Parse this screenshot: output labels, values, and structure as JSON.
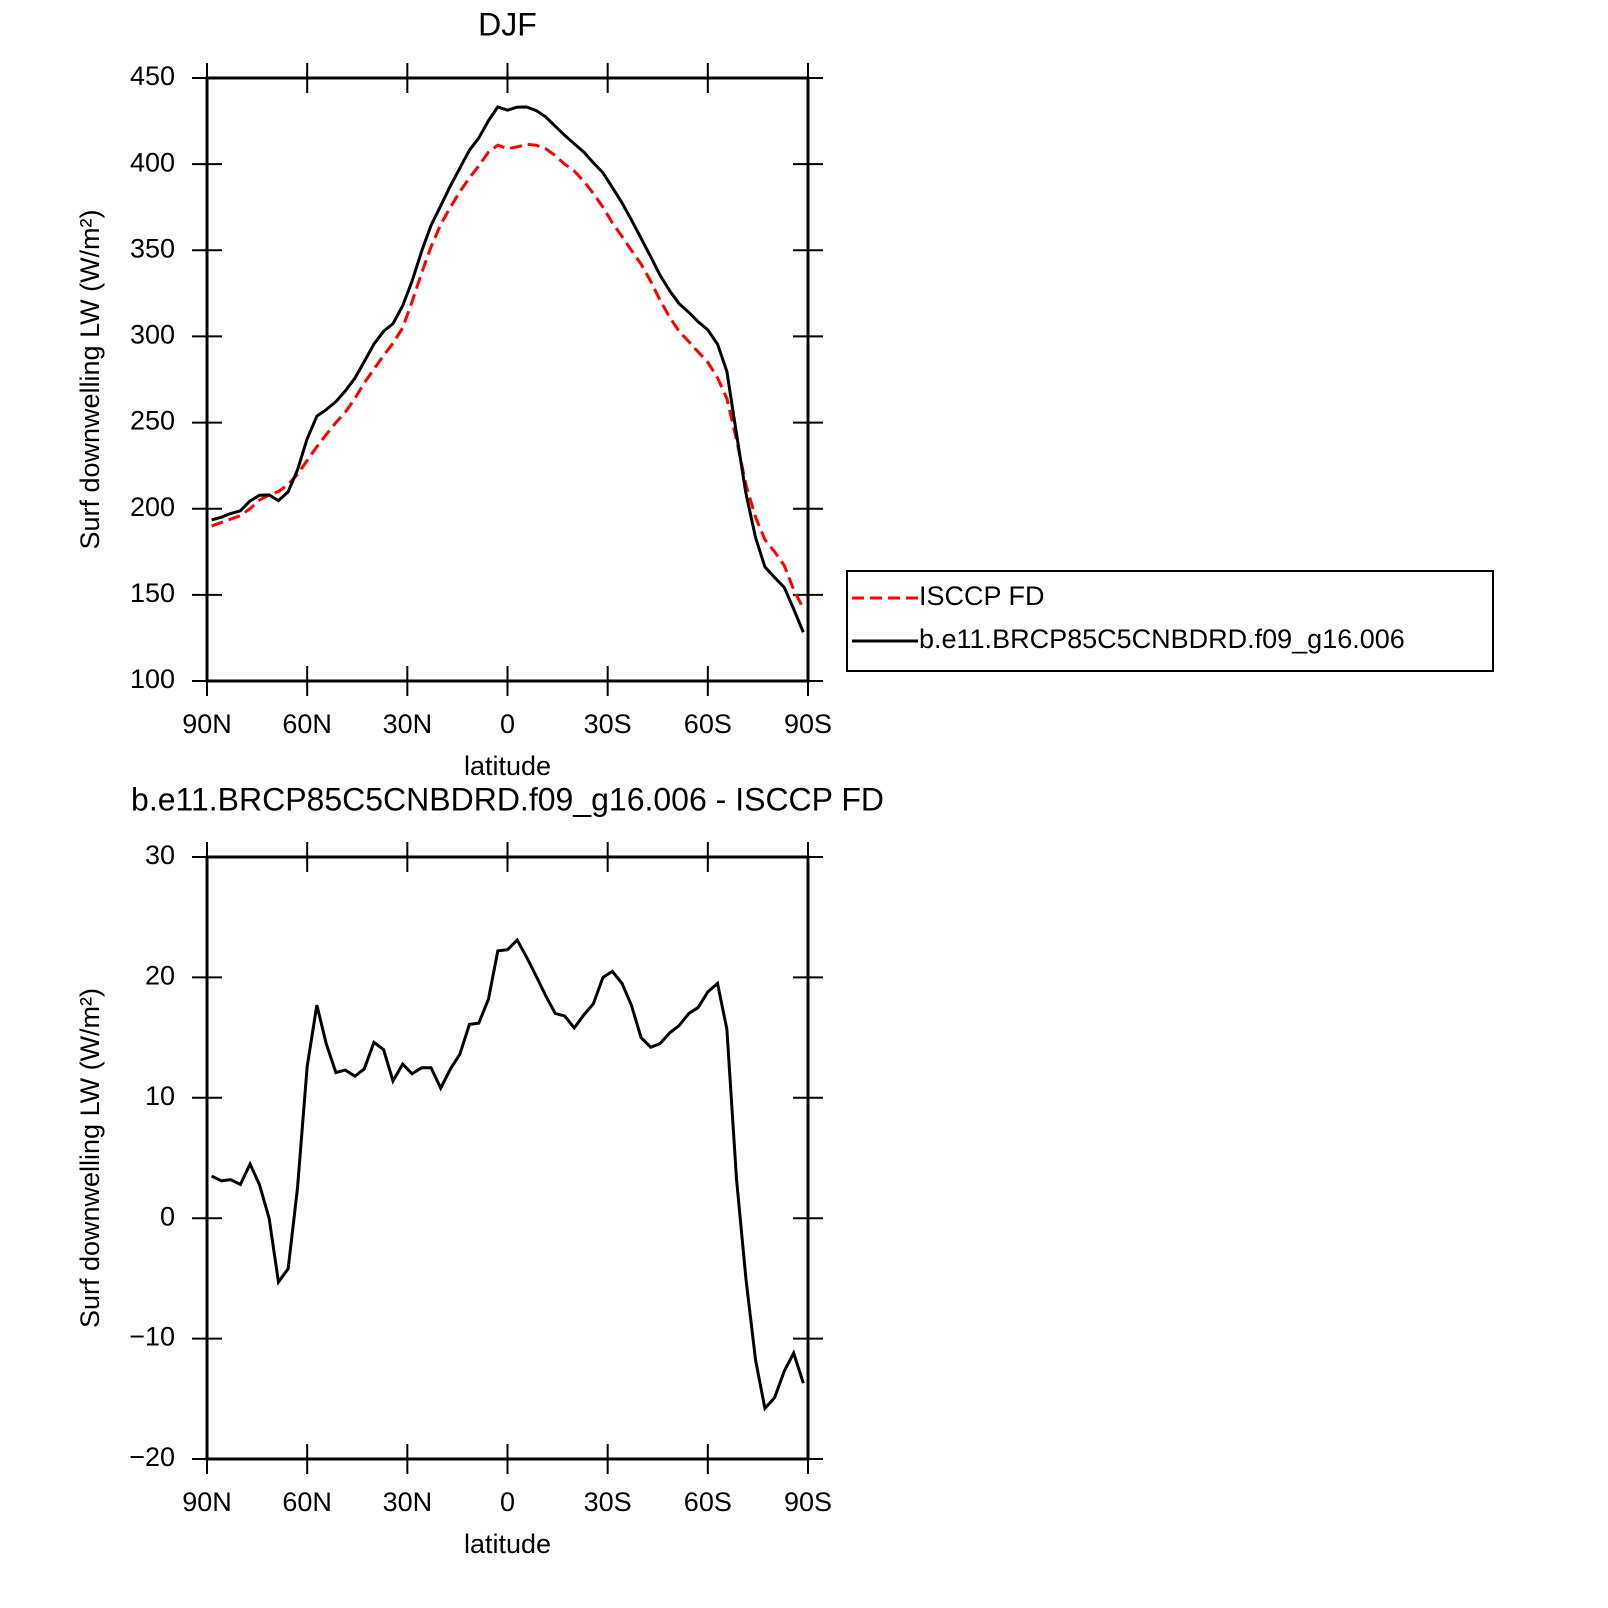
{
  "chart_data": [
    {
      "type": "line",
      "title": "DJF",
      "xlabel": "latitude",
      "ylabel": "Surf downwelling LW (W/m²)",
      "x": [
        88.6,
        85.7,
        82.9,
        80.0,
        77.1,
        74.3,
        71.4,
        68.6,
        65.7,
        62.9,
        60.0,
        57.1,
        54.3,
        51.4,
        48.6,
        45.7,
        42.9,
        40.0,
        37.1,
        34.3,
        31.4,
        28.6,
        25.7,
        22.9,
        20.0,
        17.1,
        14.3,
        11.4,
        8.6,
        5.7,
        2.9,
        0,
        -2.9,
        -5.7,
        -8.6,
        -11.4,
        -14.3,
        -17.1,
        -20.0,
        -22.9,
        -25.7,
        -28.6,
        -31.4,
        -34.3,
        -37.1,
        -40.0,
        -42.9,
        -45.7,
        -48.6,
        -51.4,
        -54.3,
        -57.1,
        -60.0,
        -62.9,
        -65.7,
        -68.6,
        -71.4,
        -74.3,
        -77.1,
        -80.0,
        -82.9,
        -85.7,
        -88.6
      ],
      "series": [
        {
          "name": "ISCCP FD",
          "color": "#ff0000",
          "dashed": true,
          "values": [
            190,
            192,
            194,
            196,
            200,
            205,
            208,
            210,
            214,
            220,
            228,
            236,
            243,
            250,
            256,
            264,
            273,
            281,
            289,
            296,
            305,
            320,
            337,
            352,
            365,
            375,
            384,
            392,
            399,
            407,
            411,
            409,
            410,
            411.5,
            411,
            409,
            405,
            400,
            396,
            390,
            383,
            375,
            366,
            358,
            350,
            342,
            332,
            321,
            311,
            303,
            297,
            291,
            285,
            276,
            264,
            240,
            214,
            195,
            182,
            175,
            167,
            153,
            142
          ]
        },
        {
          "name": "b.e11.BRCP85C5CNBDRD.f09_g16.006",
          "color": "#000000",
          "dashed": false,
          "values": [
            193.5,
            195.1,
            197.2,
            198.8,
            204.5,
            207.8,
            208,
            204.7,
            209.8,
            222.5,
            240.6,
            253.7,
            257.5,
            262.1,
            268.3,
            275.8,
            285.4,
            295.6,
            303,
            307.4,
            317.8,
            332,
            349.5,
            364.5,
            375.8,
            387.4,
            397.6,
            408.1,
            415.2,
            425.2,
            433.2,
            431.3,
            433.1,
            433.2,
            431.1,
            427.5,
            422,
            416.8,
            411.8,
            406.9,
            400.8,
            395,
            386.5,
            377.5,
            367.7,
            357,
            346.2,
            335.5,
            326.4,
            319,
            314,
            308.5,
            303.8,
            295.5,
            279.7,
            243.2,
            209,
            183.2,
            166.2,
            160.1,
            154.3,
            141.8,
            128.3
          ]
        }
      ],
      "xlim": [
        90,
        -90
      ],
      "xticks": [
        {
          "value": 90,
          "label": "90N"
        },
        {
          "value": 60,
          "label": "60N"
        },
        {
          "value": 30,
          "label": "30N"
        },
        0,
        {
          "value": -30,
          "label": "30S"
        },
        {
          "value": -60,
          "label": "60S"
        },
        {
          "value": -90,
          "label": "90S"
        }
      ],
      "ylim": [
        100,
        450
      ],
      "yticks": [
        100,
        150,
        200,
        250,
        300,
        350,
        400,
        450
      ],
      "legend": "right"
    },
    {
      "type": "line",
      "title": "b.e11.BRCP85C5CNBDRD.f09_g16.006 - ISCCP FD",
      "xlabel": "latitude",
      "ylabel": "Surf downwelling LW (W/m²)",
      "x": [
        88.6,
        85.7,
        82.9,
        80.0,
        77.1,
        74.3,
        71.4,
        68.6,
        65.7,
        62.9,
        60.0,
        57.1,
        54.3,
        51.4,
        48.6,
        45.7,
        42.9,
        40.0,
        37.1,
        34.3,
        31.4,
        28.6,
        25.7,
        22.9,
        20.0,
        17.1,
        14.3,
        11.4,
        8.6,
        5.7,
        2.9,
        0,
        -2.9,
        -5.7,
        -8.6,
        -11.4,
        -14.3,
        -17.1,
        -20.0,
        -22.9,
        -25.7,
        -28.6,
        -31.4,
        -34.3,
        -37.1,
        -40.0,
        -42.9,
        -45.7,
        -48.6,
        -51.4,
        -54.3,
        -57.1,
        -60.0,
        -62.9,
        -65.7,
        -68.6,
        -71.4,
        -74.3,
        -77.1,
        -80.0,
        -82.9,
        -85.7,
        -88.6
      ],
      "series": [
        {
          "color": "#000000",
          "dashed": false,
          "values": [
            3.5,
            3.1,
            3.2,
            2.8,
            4.5,
            2.8,
            0,
            -5.3,
            -4.2,
            2.5,
            12.6,
            17.7,
            14.5,
            12.1,
            12.3,
            11.8,
            12.4,
            14.6,
            14,
            11.4,
            12.8,
            12,
            12.5,
            12.5,
            10.8,
            12.4,
            13.6,
            16.1,
            16.2,
            18.2,
            22.2,
            22.3,
            23.1,
            21.7,
            20.1,
            18.5,
            17,
            16.8,
            15.8,
            16.9,
            17.8,
            20,
            20.5,
            19.5,
            17.7,
            15,
            14.2,
            14.5,
            15.4,
            16,
            17,
            17.5,
            18.8,
            19.5,
            15.7,
            3.2,
            -5,
            -11.8,
            -15.8,
            -14.9,
            -12.7,
            -11.2,
            -13.7
          ]
        }
      ],
      "xlim": [
        90,
        -90
      ],
      "xticks": [
        {
          "value": 90,
          "label": "90N"
        },
        {
          "value": 60,
          "label": "60N"
        },
        {
          "value": 30,
          "label": "30N"
        },
        0,
        {
          "value": -30,
          "label": "30S"
        },
        {
          "value": -60,
          "label": "60S"
        },
        {
          "value": -90,
          "label": "90S"
        }
      ],
      "ylim": [
        -20,
        30
      ],
      "yticks": [
        {
          "value": -20,
          "label": "−20"
        },
        {
          "value": -10,
          "label": "−10"
        },
        0,
        10,
        20,
        30
      ]
    }
  ]
}
